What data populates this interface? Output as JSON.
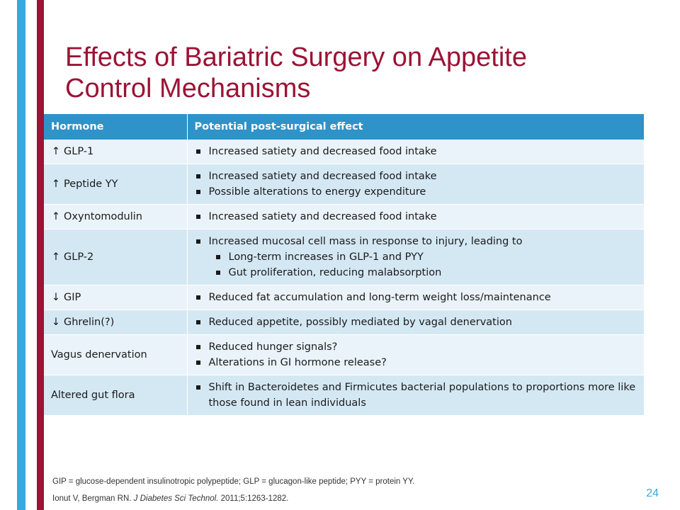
{
  "title_line1": "Effects of Bariatric Surgery on Appetite",
  "title_line2": "Control Mechanisms",
  "table": {
    "headers": [
      "Hormone",
      "Potential post-surgical effect"
    ],
    "rows": [
      {
        "arrow": "↑",
        "hormone": "GLP-1",
        "effects": [
          "Increased satiety and decreased food intake"
        ]
      },
      {
        "arrow": "↑",
        "hormone": "Peptide YY",
        "effects": [
          "Increased satiety and decreased food intake",
          "Possible alterations to energy expenditure"
        ]
      },
      {
        "arrow": "↑",
        "hormone": "Oxyntomodulin",
        "effects": [
          "Increased satiety and decreased food intake"
        ]
      },
      {
        "arrow": "↑",
        "hormone": "GLP-2",
        "effects": [
          "Increased mucosal cell mass in response to injury, leading to"
        ],
        "subeffects": [
          "Long-term increases in GLP-1 and PYY",
          "Gut proliferation, reducing malabsorption"
        ]
      },
      {
        "arrow": "↓",
        "hormone": "GIP",
        "effects": [
          "Reduced fat accumulation and long-term weight loss/maintenance"
        ]
      },
      {
        "arrow": "↓",
        "hormone": "Ghrelin(?)",
        "effects": [
          "Reduced appetite, possibly mediated by vagal denervation"
        ]
      },
      {
        "arrow": "",
        "hormone": "Vagus denervation",
        "effects": [
          "Reduced hunger signals?",
          "Alterations in GI hormone release?"
        ]
      },
      {
        "arrow": "",
        "hormone": "Altered gut flora",
        "effects": [
          "Shift in Bacteroidetes and Firmicutes bacterial populations to proportions more like those found in lean individuals"
        ]
      }
    ]
  },
  "footnote": "GIP = glucose-dependent insulinotropic polypeptide; GLP = glucagon-like peptide; PYY = protein YY.",
  "citation": {
    "authors": "Ionut V, Bergman RN.",
    "journal": "J Diabetes Sci Technol.",
    "details": "2011;5:1263-1282."
  },
  "page_number": "24",
  "colors": {
    "title": "#9b1335",
    "header_bg": "#2f92c8",
    "row_dark": "#d4e8f4",
    "row_light": "#eaf3f9",
    "accent_bar_blue": "#3aa8dc",
    "accent_bar_red": "#9b1335"
  }
}
